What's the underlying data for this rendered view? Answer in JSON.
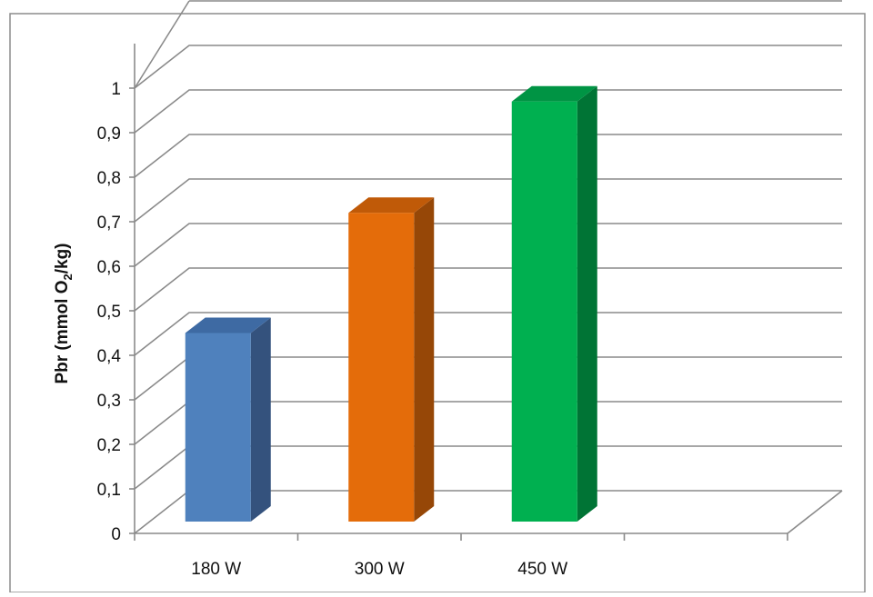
{
  "chart_data": {
    "type": "bar",
    "title": "",
    "xlabel": "",
    "ylabel": "Pbr (mmol O2/kg)",
    "ylabel_parts": {
      "pre": "Pbr (mmol O",
      "sub": "2",
      "post": "/kg)"
    },
    "categories": [
      "180 W",
      "300 W",
      "450 W"
    ],
    "values": [
      0.45,
      0.72,
      0.97
    ],
    "ylim": [
      0,
      1
    ],
    "yticks": [
      "0",
      "0,1",
      "0,2",
      "0,3",
      "0,4",
      "0,5",
      "0,6",
      "0,7",
      "0,8",
      "0,9",
      "1"
    ],
    "grid": true,
    "legend": "none",
    "colors": [
      "#4F81BD",
      "#E46C0A",
      "#00B050"
    ],
    "side_colors": [
      "#34527D",
      "#964707",
      "#007435"
    ],
    "top_colors": [
      "#3E6AA3",
      "#C05A08",
      "#009444"
    ]
  }
}
